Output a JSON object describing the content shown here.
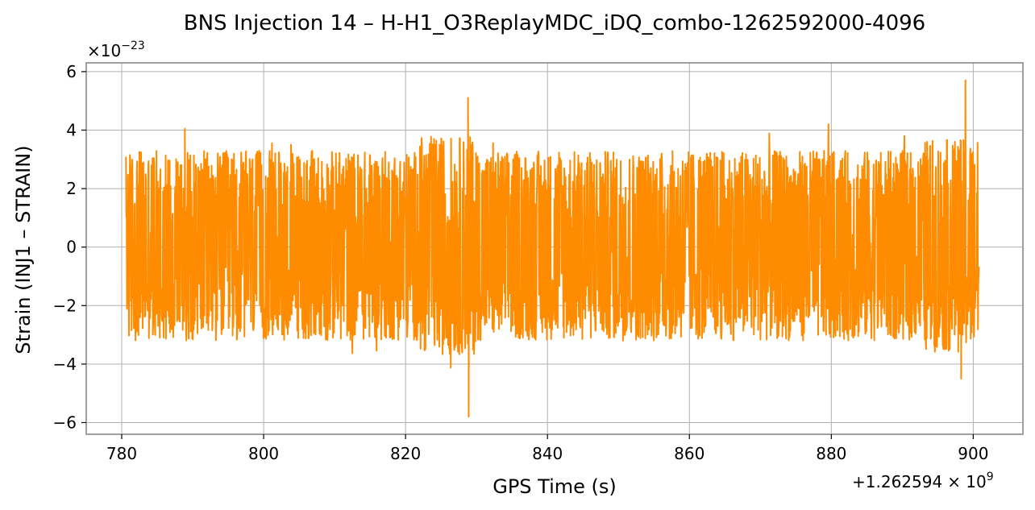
{
  "chart_data": {
    "type": "line",
    "title": "BNS Injection 14 – H-H1_O3ReplayMDC_iDQ_combo-1262592000-4096",
    "xlabel": "GPS Time (s)",
    "ylabel": "Strain (INJ1 – STRAIN)",
    "x_offset_label": "+1.262594",
    "x_offset_exp_label": "× 10",
    "x_offset_exp": "9",
    "y_scale_base": "×10",
    "y_scale_exp": "−23",
    "xlim": [
      775,
      907
    ],
    "ylim": [
      -6.4,
      6.3
    ],
    "x_ticks": [
      780,
      800,
      820,
      840,
      860,
      880,
      900
    ],
    "x_tick_labels": [
      "780",
      "800",
      "820",
      "840",
      "860",
      "880",
      "900"
    ],
    "y_ticks": [
      -6,
      -4,
      -2,
      0,
      2,
      4,
      6
    ],
    "y_tick_labels": [
      "−6",
      "−4",
      "−2",
      "0",
      "2",
      "4",
      "6"
    ],
    "grid": true,
    "legend": "none",
    "series": [
      {
        "color": "#ff8c00",
        "x_start": 780.6,
        "x_end": 900.8,
        "typical_envelope": [
          -3.2,
          3.3
        ],
        "notable_peaks": [
          {
            "x": 828.8,
            "y": 5.1
          },
          {
            "x": 828.9,
            "y": -5.8
          },
          {
            "x": 898.9,
            "y": 5.7
          },
          {
            "x": 898.3,
            "y": -4.5
          },
          {
            "x": 788.9,
            "y": 4.05
          },
          {
            "x": 879.6,
            "y": 4.2
          }
        ]
      }
    ]
  }
}
